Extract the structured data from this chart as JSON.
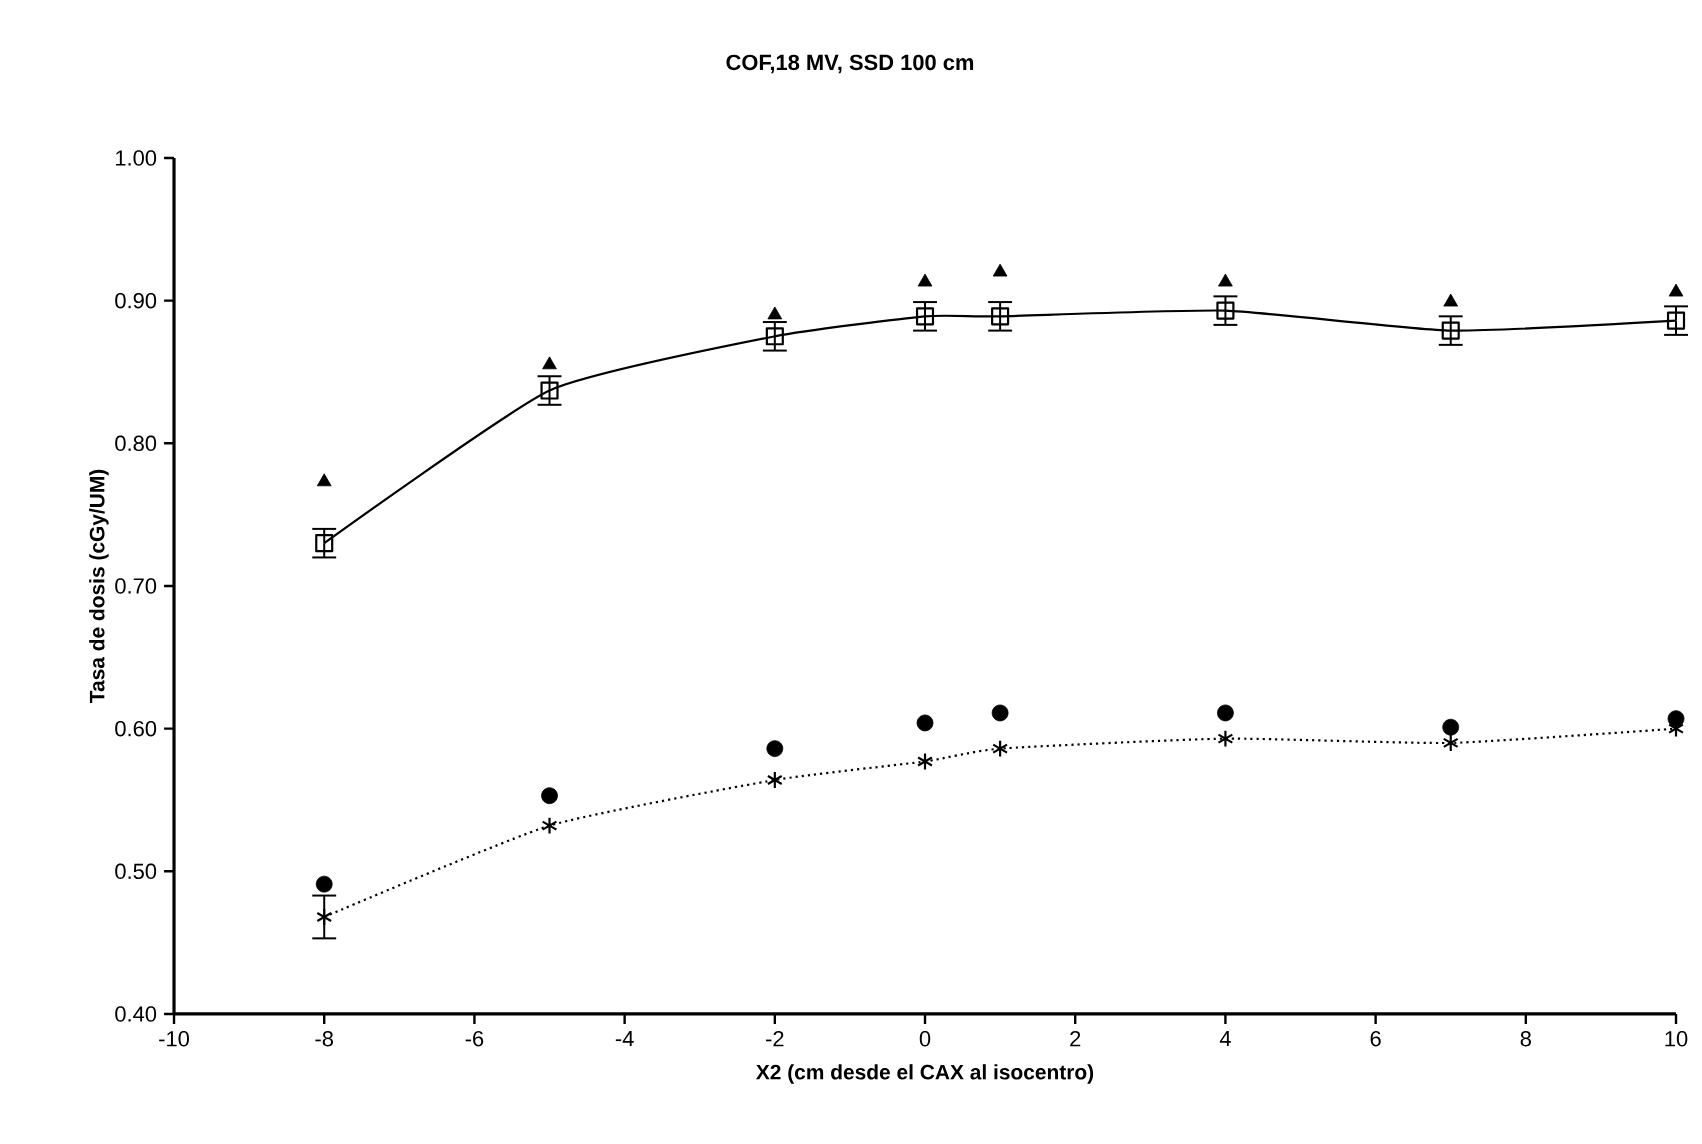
{
  "chart_data": {
    "type": "scatter",
    "title": "COF,18 MV, SSD 100 cm",
    "xlabel": "X2 (cm desde el CAX al isocentro)",
    "ylabel": "Tasa de dosis (cGy/UM)",
    "x": [
      -8,
      -5,
      -2,
      0,
      1,
      4,
      7,
      10
    ],
    "series": [
      {
        "type": "line",
        "color": "#000000",
        "marker": "square",
        "line_style": "solid",
        "values": [
          0.73,
          0.837,
          0.875,
          0.889,
          0.889,
          0.893,
          0.879,
          0.886
        ],
        "errors": [
          0.01,
          0.01,
          0.01,
          0.01,
          0.01,
          0.01,
          0.01,
          0.01
        ]
      },
      {
        "color": "#000000",
        "marker": "triangle",
        "values": [
          0.773,
          0.855,
          0.89,
          0.913,
          0.92,
          0.913,
          0.899,
          0.906
        ]
      },
      {
        "color": "#000000",
        "marker": "circle",
        "values": [
          0.491,
          0.553,
          0.586,
          0.604,
          0.611,
          0.611,
          0.601,
          0.607
        ]
      },
      {
        "type": "line",
        "color": "#000000",
        "marker": "cross",
        "line_style": "dotted",
        "values": [
          0.468,
          0.532,
          0.564,
          0.577,
          0.586,
          0.593,
          0.59,
          0.6
        ],
        "errors": [
          0.015,
          null,
          null,
          null,
          null,
          null,
          null,
          null
        ]
      }
    ],
    "xlim": [
      -10,
      10
    ],
    "xticks": [
      -10,
      -8,
      -6,
      -4,
      -2,
      0,
      2,
      4,
      6,
      8,
      10
    ],
    "ylim": [
      0.4,
      1.0
    ],
    "yticks": [
      {
        "value": 0.4,
        "label": "0.40"
      },
      {
        "value": 0.5,
        "label": "0.50"
      },
      {
        "value": 0.6,
        "label": "0.60"
      },
      {
        "value": 0.7,
        "label": "0.70"
      },
      {
        "value": 0.8,
        "label": "0.80"
      },
      {
        "value": 0.9,
        "label": "0.90"
      },
      {
        "value": 1.0,
        "label": "1.00"
      }
    ],
    "grid": false
  }
}
